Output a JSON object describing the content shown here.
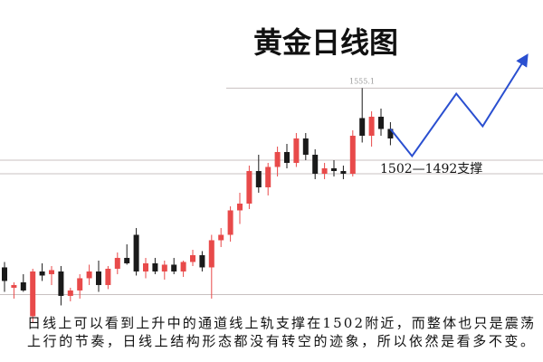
{
  "chart_data": {
    "type": "candlestick",
    "title": "黄金日线图",
    "ylim": [
      1353.3,
      1620
    ],
    "up_color": "#e84a4a",
    "down_color": "#1a1a1a",
    "level_color": "#c8c0c0",
    "forecast_color": "#2a4fd0",
    "ohlc": [
      [
        1423,
        1427,
        1405,
        1413
      ],
      [
        1408,
        1412,
        1400,
        1410
      ],
      [
        1412,
        1418,
        1405,
        1406
      ],
      [
        1387,
        1422,
        1382,
        1420
      ],
      [
        1420,
        1426,
        1413,
        1417
      ],
      [
        1418,
        1424,
        1410,
        1421
      ],
      [
        1420,
        1424,
        1395,
        1402
      ],
      [
        1402,
        1408,
        1398,
        1406
      ],
      [
        1406,
        1418,
        1400,
        1415
      ],
      [
        1415,
        1425,
        1410,
        1420
      ],
      [
        1420,
        1428,
        1405,
        1410
      ],
      [
        1410,
        1424,
        1407,
        1422
      ],
      [
        1422,
        1434,
        1418,
        1430
      ],
      [
        1430,
        1440,
        1425,
        1426
      ],
      [
        1447,
        1452,
        1417,
        1420
      ],
      [
        1420,
        1430,
        1415,
        1426
      ],
      [
        1426,
        1430,
        1418,
        1420
      ],
      [
        1420,
        1428,
        1414,
        1425
      ],
      [
        1425,
        1430,
        1418,
        1420
      ],
      [
        1420,
        1428,
        1416,
        1427
      ],
      [
        1427,
        1436,
        1424,
        1432
      ],
      [
        1432,
        1435,
        1420,
        1423
      ],
      [
        1423,
        1447,
        1400,
        1443
      ],
      [
        1443,
        1452,
        1438,
        1447
      ],
      [
        1447,
        1468,
        1442,
        1465
      ],
      [
        1465,
        1478,
        1455,
        1470
      ],
      [
        1470,
        1498,
        1466,
        1494
      ],
      [
        1494,
        1506,
        1478,
        1482
      ],
      [
        1482,
        1500,
        1476,
        1497
      ],
      [
        1497,
        1512,
        1490,
        1508
      ],
      [
        1508,
        1514,
        1496,
        1500
      ],
      [
        1500,
        1522,
        1497,
        1518
      ],
      [
        1518,
        1522,
        1502,
        1506
      ],
      [
        1506,
        1510,
        1488,
        1492
      ],
      [
        1492,
        1500,
        1488,
        1496
      ],
      [
        1496,
        1502,
        1490,
        1494
      ],
      [
        1494,
        1498,
        1488,
        1492
      ],
      [
        1492,
        1524,
        1490,
        1520
      ],
      [
        1533,
        1555.1,
        1515,
        1520
      ],
      [
        1520,
        1538,
        1512,
        1534
      ],
      [
        1534,
        1540,
        1520,
        1525
      ],
      [
        1525,
        1530,
        1513,
        1518
      ]
    ],
    "levels": [
      1555.1,
      1502,
      1492,
      1403
    ],
    "forecast": {
      "x": [
        41,
        43.3,
        48,
        50.8,
        55.5
      ],
      "values": [
        1525,
        1505,
        1551,
        1527,
        1579
      ]
    },
    "annotation": "1502—1492支撑",
    "caption": [
      "日线上可以看到上升中的通道线上轨支撑在1502附近，而整体也只是震荡",
      "上行的节奏，日线上结构形态都没有转空的迹象，所以依然是看多不变。"
    ]
  }
}
